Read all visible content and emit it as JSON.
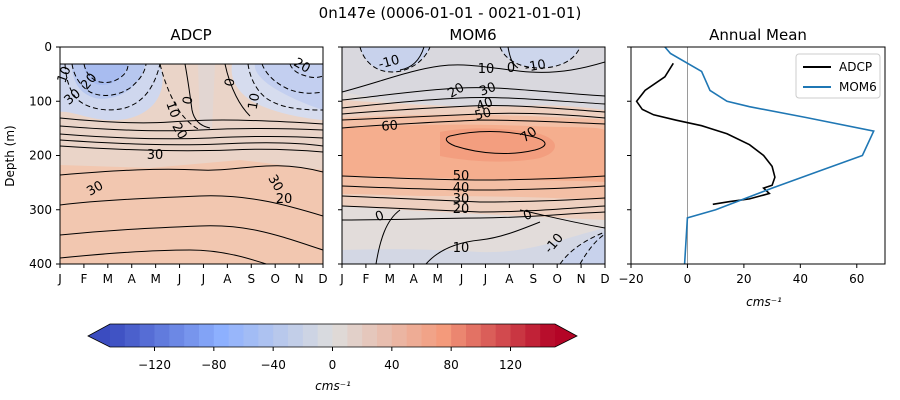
{
  "chart_data": {
    "suptitle": "0n147e (0006-01-01 - 0021-01-01)",
    "type": "contour+line",
    "months": [
      "J",
      "F",
      "M",
      "A",
      "M",
      "J",
      "J",
      "A",
      "S",
      "O",
      "N",
      "D"
    ],
    "depth_axis": {
      "label": "Depth (m)",
      "range": [
        0,
        400
      ],
      "ticks": [
        0,
        100,
        200,
        300,
        400
      ]
    },
    "panels": [
      {
        "id": "adcp",
        "title": "ADCP",
        "type": "contour",
        "data_depth_range": [
          30,
          280
        ],
        "contour_labels": [
          "30",
          "20",
          "10",
          "0",
          "10",
          "20",
          "30",
          "20",
          "10",
          "0",
          "30",
          "20",
          "30"
        ]
      },
      {
        "id": "mom6",
        "title": "MOM6",
        "type": "contour",
        "data_depth_range": [
          0,
          400
        ],
        "contour_labels": [
          "-10",
          "10",
          "0",
          "-10",
          "20",
          "30",
          "40",
          "50",
          "60",
          "70",
          "50",
          "40",
          "30",
          "20",
          "0",
          "0",
          "-10",
          "10"
        ]
      },
      {
        "id": "annual",
        "title": "Annual Mean",
        "type": "line",
        "xlim": [
          -20,
          70
        ],
        "xticks": [
          -20,
          0,
          20,
          40,
          60
        ],
        "xlabel": "cms⁻¹",
        "series": [
          {
            "name": "ADCP",
            "color": "#000000",
            "x": [
              -5,
              -8,
              -15,
              -18,
              -16,
              -12,
              -4,
              5,
              14,
              22,
              27,
              30,
              31,
              30,
              27,
              29,
              22,
              15,
              9
            ],
            "depth": [
              30,
              55,
              80,
              100,
              115,
              125,
              135,
              145,
              160,
              180,
              200,
              220,
              240,
              255,
              260,
              270,
              280,
              285,
              290
            ]
          },
          {
            "name": "MOM6",
            "color": "#1f77b4",
            "x": [
              -8,
              -6,
              5,
              8,
              14,
              22,
              42,
              66,
              62,
              46,
              30,
              10,
              0,
              -1
            ],
            "depth": [
              0,
              12,
              45,
              80,
              100,
              110,
              130,
              155,
              200,
              230,
              260,
              300,
              315,
              400
            ]
          }
        ]
      }
    ],
    "colorbar": {
      "label": "cms⁻¹",
      "range": [
        -150,
        150
      ],
      "ticks": [
        -120,
        -80,
        -40,
        0,
        40,
        80,
        120
      ],
      "levels": 30,
      "colormap": "coolwarm"
    }
  }
}
